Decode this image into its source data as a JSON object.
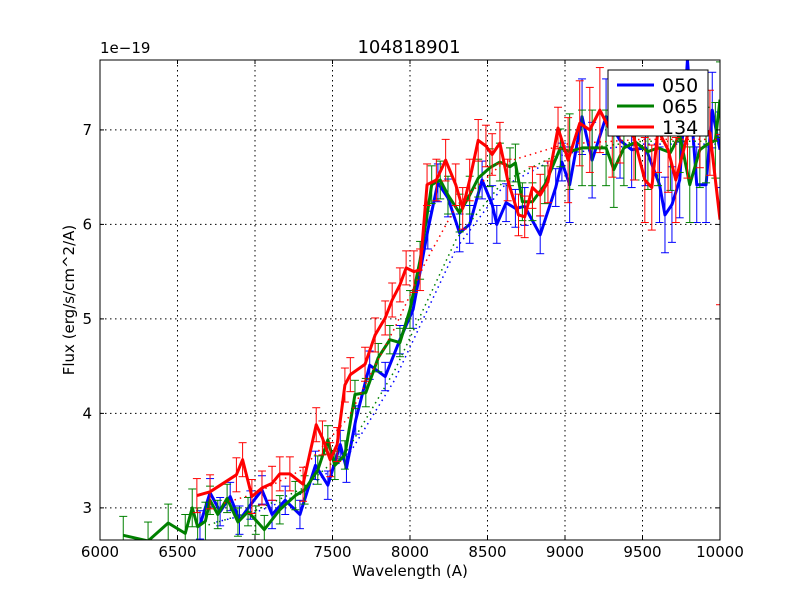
{
  "chart_data": {
    "type": "line",
    "title": "104818901",
    "xlabel": "Wavelength (A)",
    "ylabel": "Flux (erg/s/cm^2/A)",
    "y_offset_label": "1e−19",
    "xlim": [
      6000,
      10000
    ],
    "ylim": [
      2.66,
      7.74
    ],
    "xticks": [
      "6000",
      "6500",
      "7000",
      "7500",
      "8000",
      "8500",
      "9000",
      "9500",
      "10000"
    ],
    "xtick_values": [
      6000,
      6500,
      7000,
      7500,
      8000,
      8500,
      9000,
      9500,
      10000
    ],
    "yticks": [
      "3",
      "4",
      "5",
      "6",
      "7"
    ],
    "ytick_values": [
      3,
      4,
      5,
      6,
      7
    ],
    "grid": true,
    "legend_position": "top-right",
    "series": [
      {
        "name": "050",
        "color": "#0000ff",
        "x": [
          6645,
          6710,
          6775,
          6840,
          6900,
          6970,
          7045,
          7110,
          7195,
          7290,
          7390,
          7470,
          7550,
          7590,
          7650,
          7740,
          7840,
          7935,
          8020,
          8115,
          8180,
          8245,
          8320,
          8385,
          8465,
          8530,
          8560,
          8620,
          8680,
          8740,
          8840,
          8940,
          8980,
          9030,
          9110,
          9175,
          9265,
          9355,
          9430,
          9520,
          9610,
          9645,
          9690,
          9740,
          9790,
          9850,
          9910,
          9950,
          10000
        ],
        "y": [
          2.82,
          3.16,
          2.96,
          3.12,
          2.87,
          3.03,
          3.19,
          2.93,
          3.08,
          2.93,
          3.45,
          3.24,
          3.67,
          3.42,
          3.93,
          4.51,
          4.39,
          4.78,
          5.1,
          5.94,
          6.44,
          6.28,
          5.91,
          6.0,
          6.47,
          6.21,
          6.0,
          6.23,
          6.17,
          6.19,
          5.89,
          6.39,
          6.66,
          6.42,
          7.14,
          6.68,
          7.14,
          6.89,
          6.79,
          6.81,
          6.42,
          6.1,
          6.21,
          6.47,
          7.74,
          6.42,
          6.42,
          7.21,
          6.79
        ],
        "yerr": [
          0.15,
          0.15,
          0.15,
          0.15,
          0.15,
          0.15,
          0.15,
          0.15,
          0.15,
          0.15,
          0.15,
          0.15,
          0.15,
          0.15,
          0.15,
          0.15,
          0.15,
          0.15,
          0.2,
          0.2,
          0.2,
          0.2,
          0.2,
          0.2,
          0.2,
          0.2,
          0.2,
          0.2,
          0.2,
          0.2,
          0.2,
          0.2,
          0.2,
          0.4,
          0.4,
          0.4,
          0.4,
          0.4,
          0.4,
          0.4,
          0.4,
          0.4,
          0.4,
          0.4,
          0.4,
          0.4,
          0.4,
          0.4,
          0.4
        ],
        "model_x": [
          6750,
          7000,
          7300,
          7600,
          7900,
          8100,
          8300,
          8600,
          9000,
          9500,
          10000
        ],
        "model_y": [
          2.85,
          2.95,
          3.15,
          3.55,
          4.35,
          5.05,
          5.75,
          6.4,
          6.75,
          6.85,
          6.85
        ]
      },
      {
        "name": "065",
        "color": "#008000",
        "x": [
          6150,
          6310,
          6440,
          6550,
          6595,
          6630,
          6680,
          6710,
          6760,
          6820,
          6890,
          6955,
          7005,
          7060,
          7160,
          7260,
          7320,
          7405,
          7470,
          7515,
          7580,
          7645,
          7715,
          7795,
          7870,
          7935,
          8000,
          8065,
          8140,
          8195,
          8245,
          8320,
          8385,
          8440,
          8515,
          8580,
          8645,
          8680,
          8725,
          8790,
          8870,
          8970,
          9030,
          9110,
          9175,
          9265,
          9315,
          9380,
          9455,
          9535,
          9600,
          9680,
          9740,
          9805,
          9870,
          9910,
          9970,
          10000
        ],
        "y": [
          2.71,
          2.65,
          2.84,
          2.73,
          3.0,
          2.8,
          2.86,
          3.08,
          2.93,
          3.1,
          2.85,
          2.96,
          2.87,
          2.77,
          2.98,
          3.13,
          3.19,
          3.4,
          3.72,
          3.45,
          3.56,
          4.2,
          4.22,
          4.59,
          4.78,
          4.75,
          5.1,
          5.62,
          6.42,
          6.47,
          6.31,
          6.12,
          6.31,
          6.49,
          6.6,
          6.66,
          6.61,
          6.65,
          6.24,
          6.24,
          6.42,
          6.81,
          6.77,
          6.81,
          6.81,
          6.81,
          6.58,
          6.81,
          6.87,
          6.77,
          6.81,
          6.76,
          6.95,
          6.42,
          6.79,
          6.84,
          6.89,
          7.32
        ],
        "yerr": [
          0.2,
          0.2,
          0.2,
          0.2,
          0.2,
          0.2,
          0.2,
          0.15,
          0.15,
          0.15,
          0.15,
          0.15,
          0.15,
          0.15,
          0.15,
          0.15,
          0.15,
          0.15,
          0.15,
          0.15,
          0.15,
          0.15,
          0.15,
          0.15,
          0.15,
          0.15,
          0.2,
          0.2,
          0.2,
          0.2,
          0.2,
          0.2,
          0.2,
          0.2,
          0.2,
          0.2,
          0.2,
          0.2,
          0.2,
          0.2,
          0.2,
          0.2,
          0.4,
          0.4,
          0.4,
          0.4,
          0.4,
          0.4,
          0.4,
          0.4,
          0.4,
          0.4,
          0.4,
          0.4,
          0.4,
          0.4,
          0.4,
          0.4
        ],
        "model_x": [
          6700,
          7000,
          7300,
          7600,
          7900,
          8100,
          8300,
          8600,
          9000,
          9500,
          10000
        ],
        "model_y": [
          2.82,
          2.97,
          3.2,
          3.62,
          4.45,
          5.15,
          5.85,
          6.45,
          6.78,
          6.88,
          6.88
        ]
      },
      {
        "name": "134",
        "color": "#ff0000",
        "x": [
          6625,
          6710,
          6880,
          6920,
          6980,
          7045,
          7110,
          7160,
          7225,
          7310,
          7395,
          7435,
          7485,
          7530,
          7580,
          7615,
          7710,
          7775,
          7840,
          7885,
          7935,
          7975,
          8025,
          8065,
          8110,
          8170,
          8230,
          8295,
          8340,
          8385,
          8440,
          8490,
          8530,
          8580,
          8630,
          8700,
          8740,
          8790,
          8840,
          8890,
          8955,
          9020,
          9095,
          9160,
          9225,
          9305,
          9355,
          9445,
          9515,
          9560,
          9600,
          9665,
          9715,
          9790,
          9870,
          9935,
          10000
        ],
        "y": [
          3.13,
          3.17,
          3.35,
          3.51,
          3.12,
          3.21,
          3.26,
          3.36,
          3.36,
          3.25,
          3.88,
          3.74,
          3.51,
          3.67,
          4.3,
          4.41,
          4.52,
          4.83,
          5.01,
          5.2,
          5.36,
          5.54,
          5.5,
          5.52,
          6.42,
          6.47,
          6.68,
          6.42,
          6.17,
          6.47,
          6.89,
          6.83,
          6.74,
          6.86,
          6.47,
          6.1,
          6.08,
          6.39,
          6.31,
          6.45,
          7.02,
          6.68,
          7.07,
          7.0,
          7.21,
          6.95,
          7.1,
          6.92,
          6.47,
          6.39,
          7.0,
          6.79,
          6.47,
          6.94,
          7.05,
          6.97,
          6.05
        ],
        "yerr": [
          0.18,
          0.18,
          0.18,
          0.18,
          0.18,
          0.18,
          0.18,
          0.18,
          0.18,
          0.18,
          0.18,
          0.18,
          0.18,
          0.18,
          0.18,
          0.18,
          0.18,
          0.18,
          0.18,
          0.18,
          0.18,
          0.18,
          0.22,
          0.22,
          0.22,
          0.22,
          0.22,
          0.22,
          0.22,
          0.22,
          0.22,
          0.22,
          0.22,
          0.22,
          0.22,
          0.22,
          0.22,
          0.22,
          0.22,
          0.22,
          0.22,
          0.45,
          0.45,
          0.45,
          0.45,
          0.45,
          0.45,
          0.45,
          0.45,
          0.45,
          0.45,
          0.45,
          0.45,
          0.45,
          0.45,
          0.45,
          0.9
        ],
        "model_x": [
          6800,
          7000,
          7300,
          7600,
          7900,
          8100,
          8300,
          8600,
          9000,
          9500,
          10000
        ],
        "model_y": [
          3.05,
          3.15,
          3.4,
          3.95,
          4.9,
          5.6,
          6.2,
          6.65,
          6.85,
          6.9,
          6.9
        ]
      }
    ]
  }
}
